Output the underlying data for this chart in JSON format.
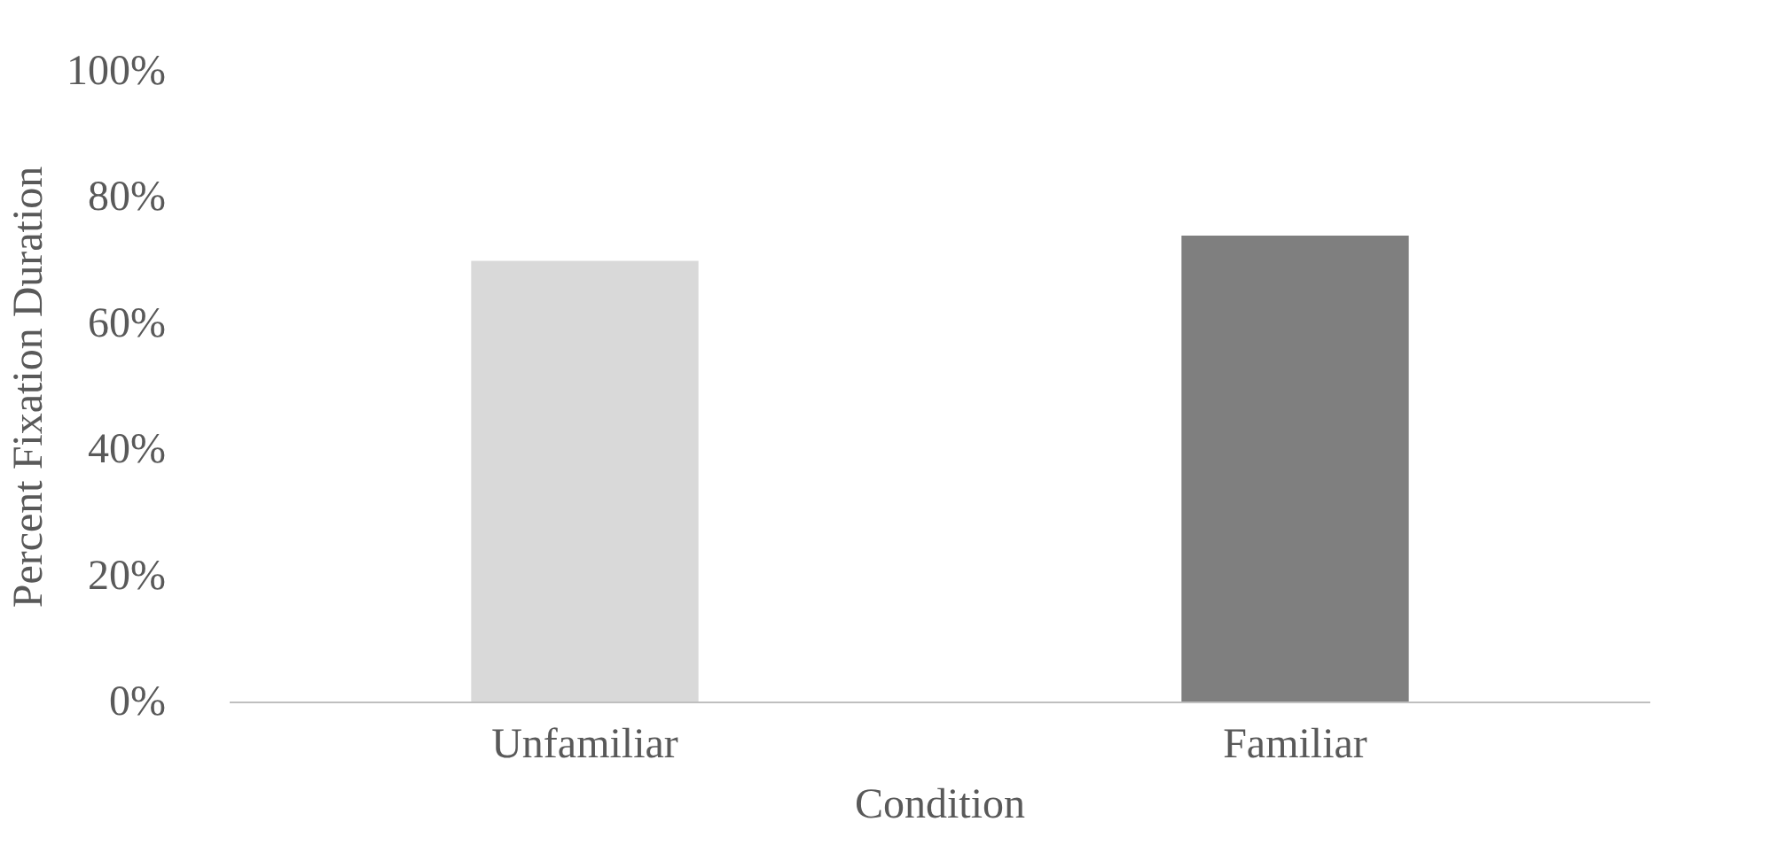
{
  "chart_data": {
    "type": "bar",
    "xlabel": "Condition",
    "ylabel": "Percent Fixation Duration",
    "categories": [
      "Unfamiliar",
      "Familiar"
    ],
    "values": [
      70,
      74
    ],
    "colors": [
      "#d9d9d9",
      "#7f7f7f"
    ],
    "ylim": [
      0,
      100
    ],
    "yticks": [
      {
        "value": 0,
        "label": "0%"
      },
      {
        "value": 20,
        "label": "20%"
      },
      {
        "value": 40,
        "label": "40%"
      },
      {
        "value": 60,
        "label": "60%"
      },
      {
        "value": 80,
        "label": "80%"
      },
      {
        "value": 100,
        "label": "100%"
      }
    ],
    "grid": false
  }
}
